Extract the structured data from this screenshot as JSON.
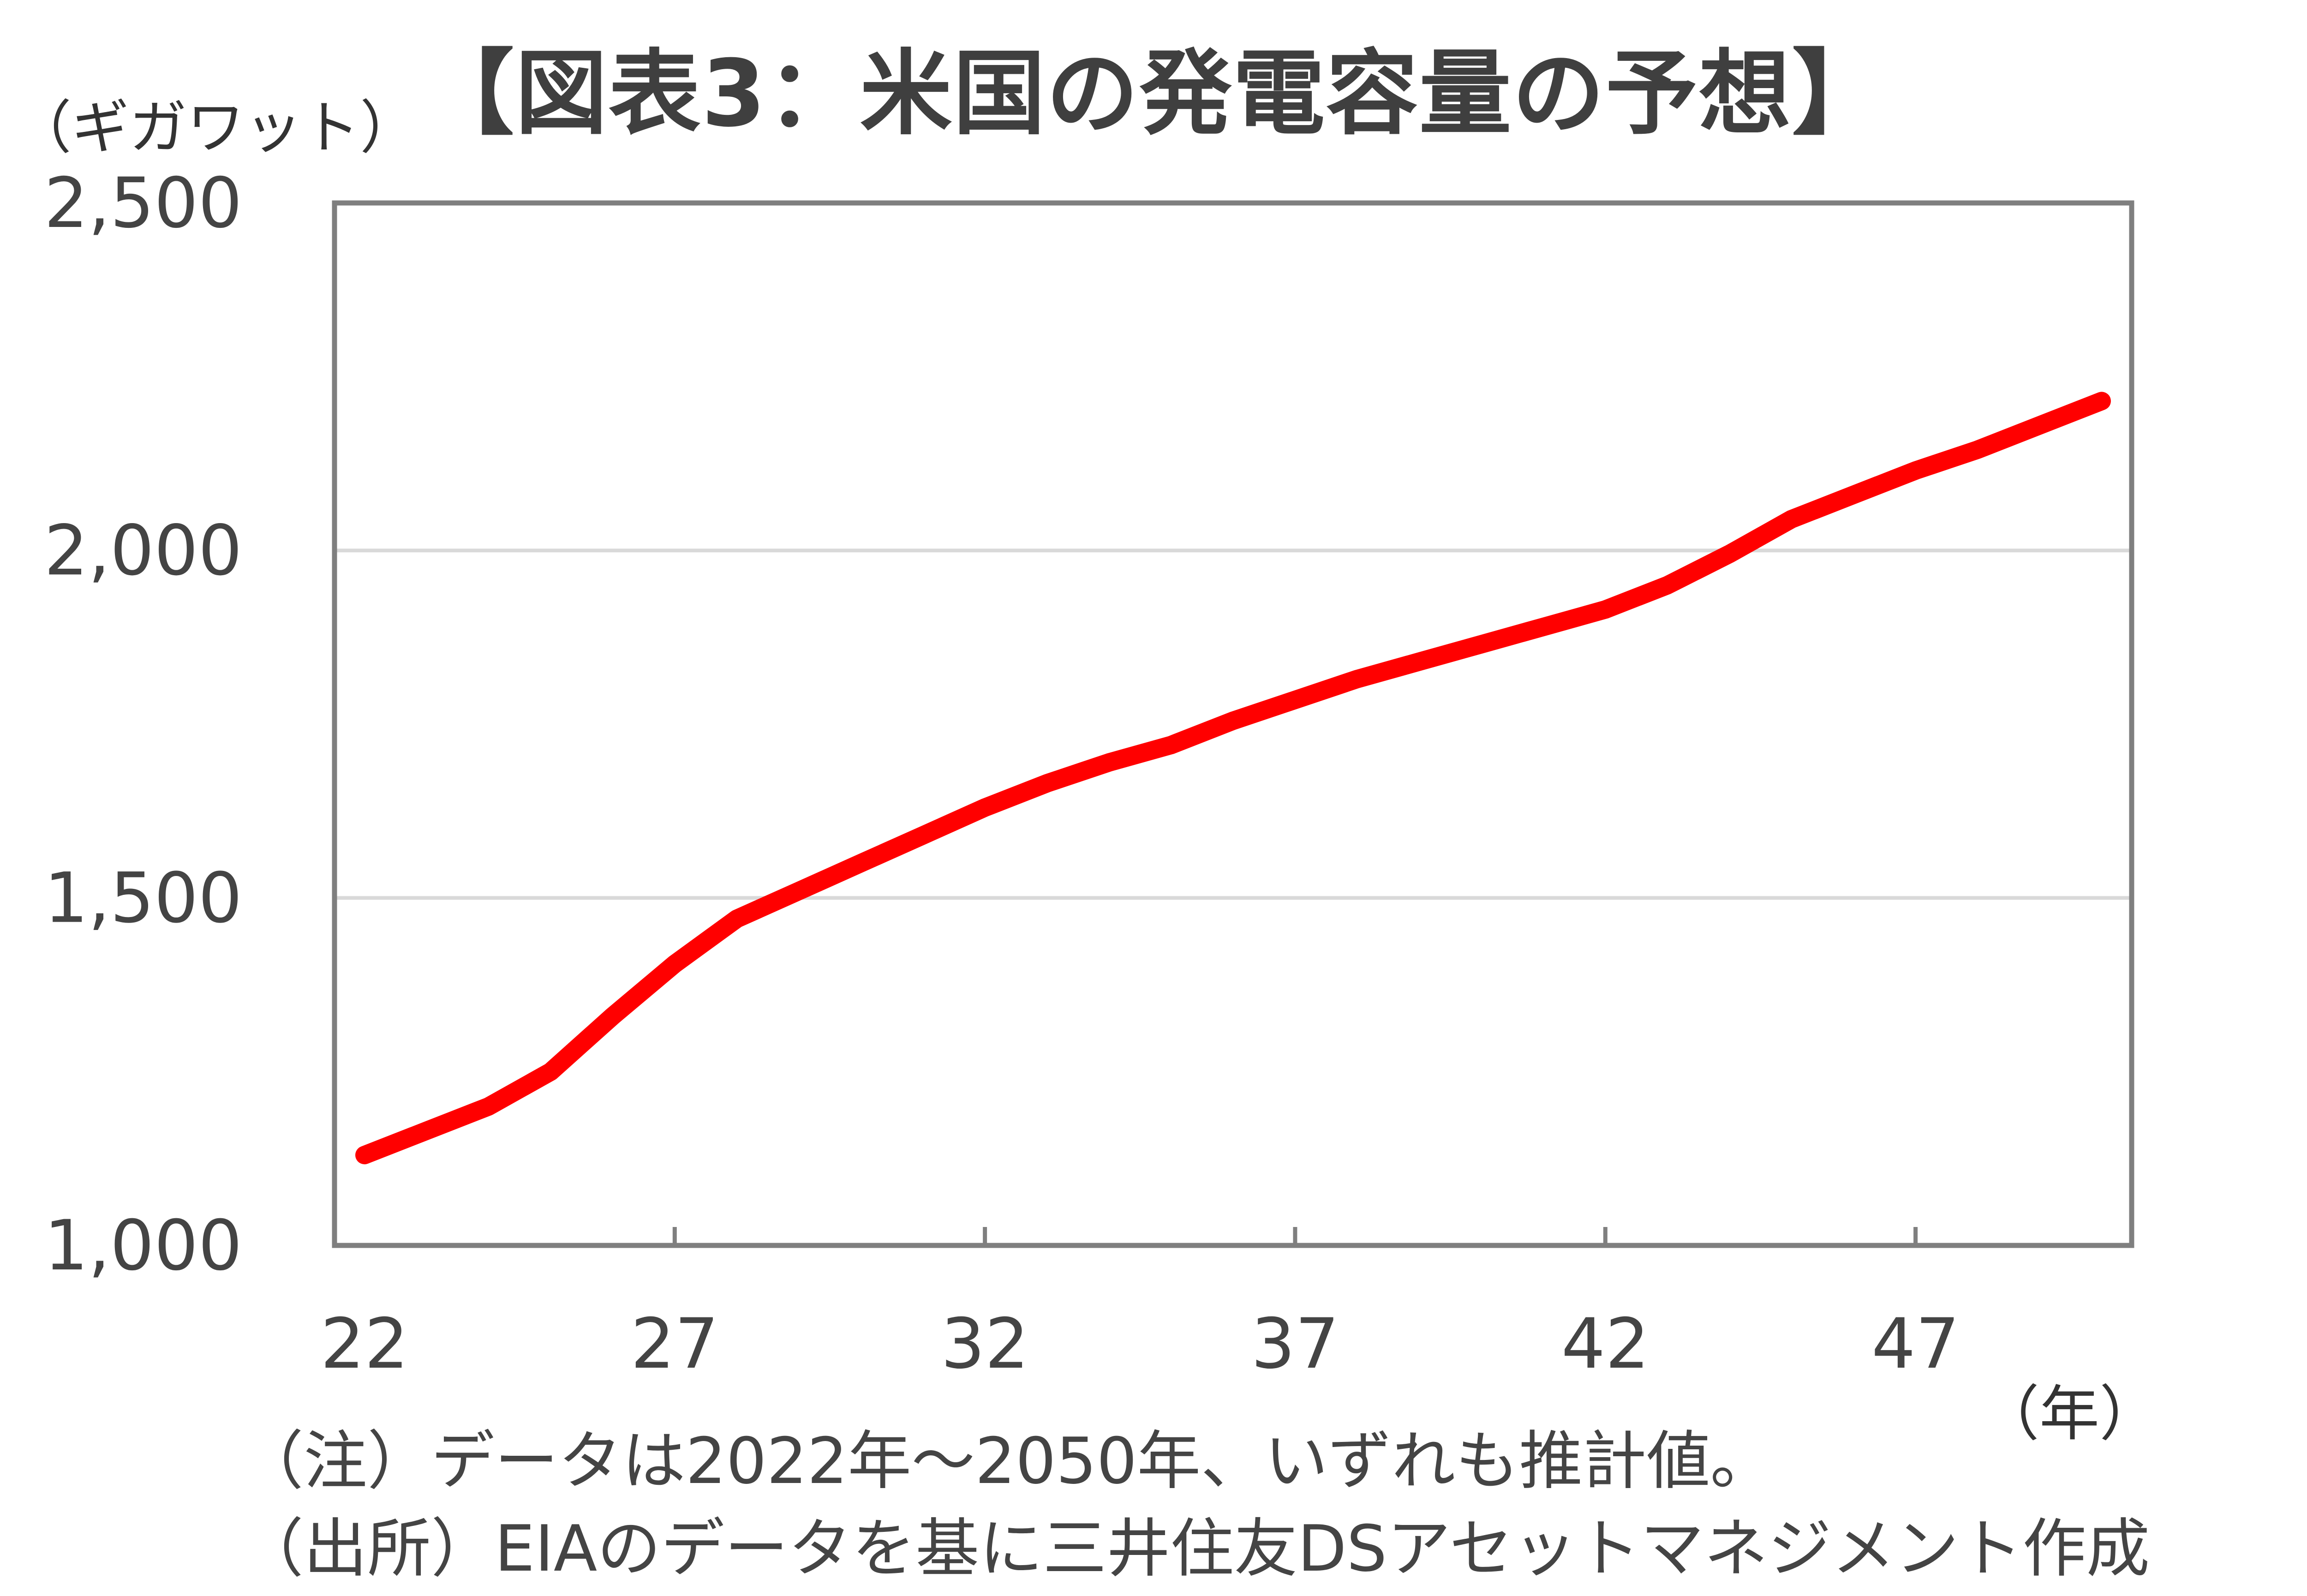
{
  "chart_data": {
    "type": "line",
    "title": "【図表3：米国の発電容量の予想】",
    "ylabel": "（ギガワット）",
    "xlabel": "（年）",
    "ylim": [
      1000,
      2500
    ],
    "y_ticks": [
      "1,000",
      "1,500",
      "2,000",
      "2,500"
    ],
    "y_tick_values": [
      1000,
      1500,
      2000,
      2500
    ],
    "x_ticks": [
      "22",
      "27",
      "32",
      "37",
      "42",
      "47"
    ],
    "x_tick_values": [
      22,
      27,
      32,
      37,
      42,
      47
    ],
    "xlim": [
      22,
      50
    ],
    "grid": true,
    "line_color": "#ff0000",
    "series": [
      {
        "x": [
          22,
          23,
          24,
          25,
          26,
          27,
          28,
          29,
          30,
          31,
          32,
          33,
          34,
          35,
          36,
          37,
          38,
          39,
          40,
          41,
          42,
          43,
          44,
          45,
          46,
          47,
          48,
          49,
          50
        ],
        "values": [
          1130,
          1165,
          1200,
          1250,
          1330,
          1405,
          1470,
          1510,
          1550,
          1590,
          1630,
          1665,
          1695,
          1720,
          1755,
          1785,
          1815,
          1840,
          1865,
          1890,
          1915,
          1950,
          1995,
          2045,
          2080,
          2115,
          2145,
          2180,
          2215
        ]
      }
    ]
  },
  "notes": {
    "note_1": "（注）データは2022年～2050年、いずれも推計値。",
    "note_2": "（出所）EIAのデータを基に三井住友DSアセットマネジメント作成"
  }
}
